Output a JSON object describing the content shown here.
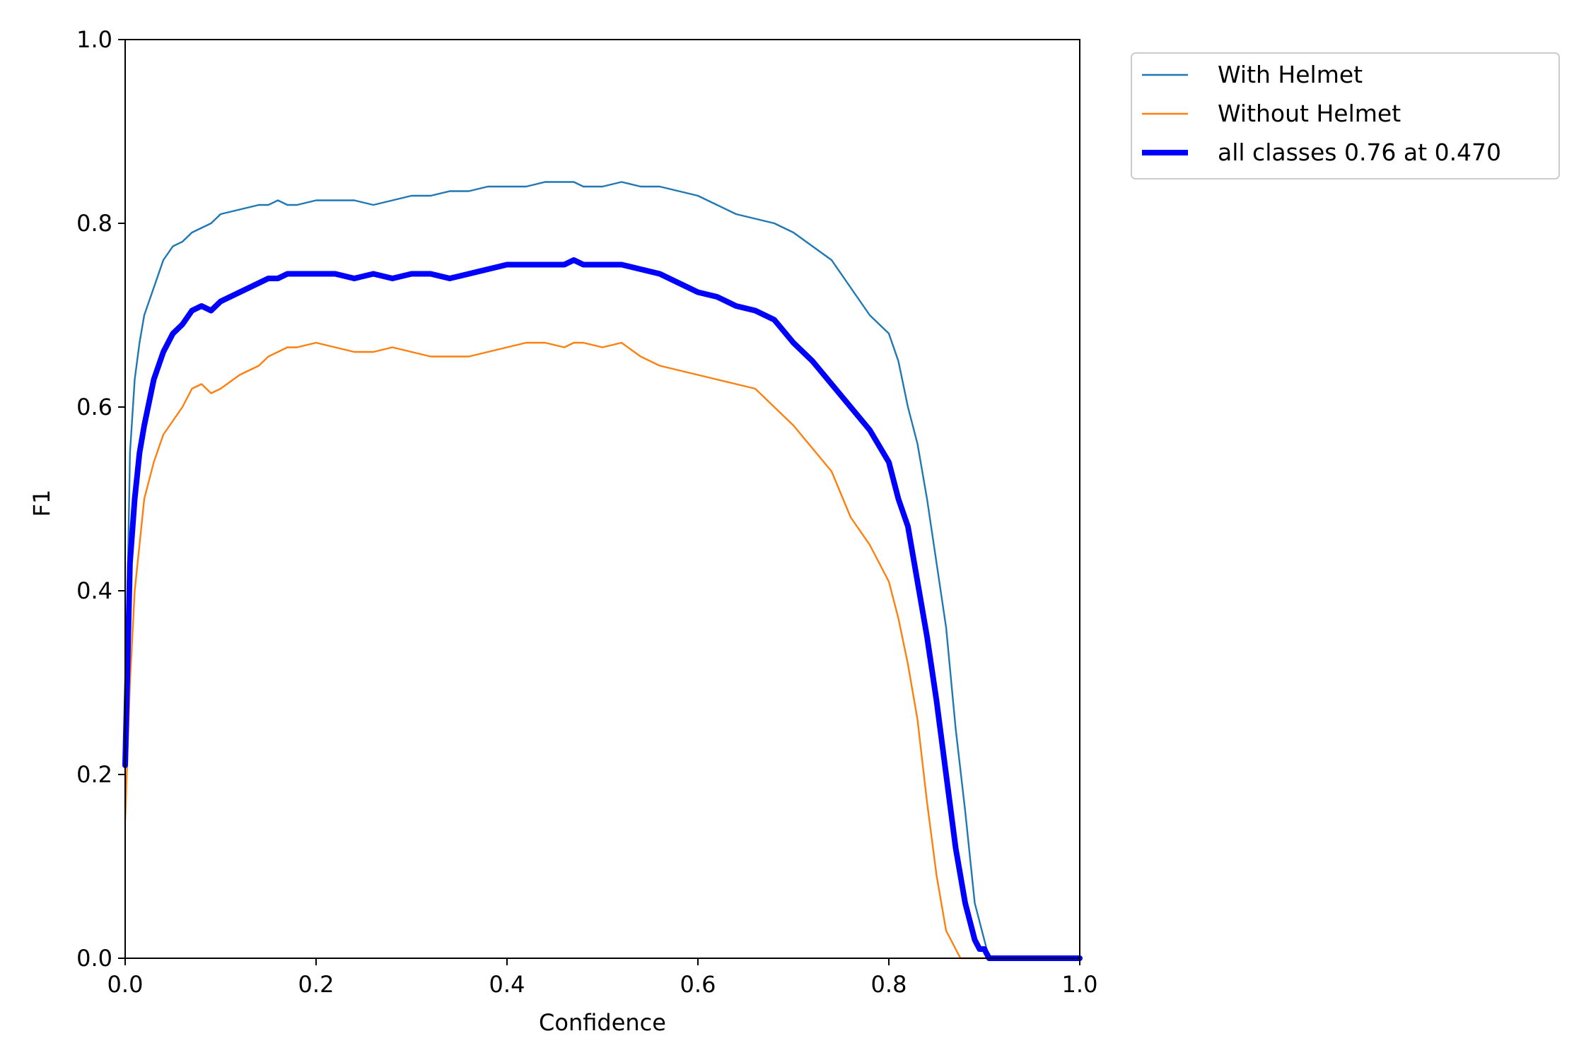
{
  "chart_data": {
    "type": "line",
    "title": "",
    "xlabel": "Confidence",
    "ylabel": "F1",
    "xlim": [
      0,
      1
    ],
    "ylim": [
      0,
      1
    ],
    "xticks": [
      "0.0",
      "0.2",
      "0.4",
      "0.6",
      "0.8",
      "1.0"
    ],
    "yticks": [
      "0.0",
      "0.2",
      "0.4",
      "0.6",
      "0.8",
      "1.0"
    ],
    "grid": false,
    "legend_position": "outside top-right",
    "series": [
      {
        "name": "With Helmet",
        "color": "#1f77b4",
        "width": "thin",
        "x": [
          0,
          0.005,
          0.01,
          0.015,
          0.02,
          0.03,
          0.04,
          0.05,
          0.06,
          0.07,
          0.08,
          0.09,
          0.1,
          0.12,
          0.14,
          0.15,
          0.16,
          0.17,
          0.18,
          0.2,
          0.22,
          0.24,
          0.26,
          0.28,
          0.3,
          0.32,
          0.34,
          0.36,
          0.38,
          0.4,
          0.42,
          0.44,
          0.46,
          0.47,
          0.48,
          0.5,
          0.52,
          0.54,
          0.56,
          0.58,
          0.6,
          0.62,
          0.64,
          0.66,
          0.68,
          0.7,
          0.72,
          0.74,
          0.76,
          0.78,
          0.8,
          0.81,
          0.82,
          0.83,
          0.84,
          0.85,
          0.86,
          0.87,
          0.88,
          0.89,
          0.9,
          0.905,
          0.91,
          0.95,
          1.0
        ],
        "y": [
          0.25,
          0.55,
          0.63,
          0.67,
          0.7,
          0.73,
          0.76,
          0.775,
          0.78,
          0.79,
          0.795,
          0.8,
          0.81,
          0.815,
          0.82,
          0.82,
          0.825,
          0.82,
          0.82,
          0.825,
          0.825,
          0.825,
          0.82,
          0.825,
          0.83,
          0.83,
          0.835,
          0.835,
          0.84,
          0.84,
          0.84,
          0.845,
          0.845,
          0.845,
          0.84,
          0.84,
          0.845,
          0.84,
          0.84,
          0.835,
          0.83,
          0.82,
          0.81,
          0.805,
          0.8,
          0.79,
          0.775,
          0.76,
          0.73,
          0.7,
          0.68,
          0.65,
          0.6,
          0.56,
          0.5,
          0.43,
          0.36,
          0.25,
          0.16,
          0.06,
          0.02,
          0,
          0,
          0,
          0
        ]
      },
      {
        "name": "Without Helmet",
        "color": "#ff7f0e",
        "width": "thin",
        "x": [
          0,
          0.005,
          0.01,
          0.015,
          0.02,
          0.03,
          0.04,
          0.05,
          0.06,
          0.07,
          0.08,
          0.09,
          0.1,
          0.12,
          0.14,
          0.15,
          0.16,
          0.17,
          0.18,
          0.2,
          0.22,
          0.24,
          0.26,
          0.28,
          0.3,
          0.32,
          0.34,
          0.36,
          0.38,
          0.4,
          0.42,
          0.44,
          0.46,
          0.47,
          0.48,
          0.5,
          0.52,
          0.54,
          0.56,
          0.58,
          0.6,
          0.62,
          0.64,
          0.66,
          0.68,
          0.7,
          0.72,
          0.74,
          0.76,
          0.78,
          0.8,
          0.81,
          0.82,
          0.83,
          0.84,
          0.85,
          0.86,
          0.865,
          0.87,
          0.875,
          0.88,
          1.0
        ],
        "y": [
          0.15,
          0.3,
          0.4,
          0.45,
          0.5,
          0.54,
          0.57,
          0.585,
          0.6,
          0.62,
          0.625,
          0.615,
          0.62,
          0.635,
          0.645,
          0.655,
          0.66,
          0.665,
          0.665,
          0.67,
          0.665,
          0.66,
          0.66,
          0.665,
          0.66,
          0.655,
          0.655,
          0.655,
          0.66,
          0.665,
          0.67,
          0.67,
          0.665,
          0.67,
          0.67,
          0.665,
          0.67,
          0.655,
          0.645,
          0.64,
          0.635,
          0.63,
          0.625,
          0.62,
          0.6,
          0.58,
          0.555,
          0.53,
          0.48,
          0.45,
          0.41,
          0.37,
          0.32,
          0.26,
          0.17,
          0.09,
          0.03,
          0.02,
          0.01,
          0,
          0,
          0
        ]
      },
      {
        "name": "all classes 0.76 at 0.470",
        "color": "#0000ff",
        "width": "thick",
        "x": [
          0,
          0.005,
          0.01,
          0.015,
          0.02,
          0.03,
          0.04,
          0.05,
          0.06,
          0.07,
          0.08,
          0.09,
          0.1,
          0.12,
          0.14,
          0.15,
          0.16,
          0.17,
          0.18,
          0.2,
          0.22,
          0.24,
          0.26,
          0.28,
          0.3,
          0.32,
          0.34,
          0.36,
          0.38,
          0.4,
          0.42,
          0.44,
          0.46,
          0.47,
          0.48,
          0.5,
          0.52,
          0.54,
          0.56,
          0.58,
          0.6,
          0.62,
          0.64,
          0.66,
          0.68,
          0.7,
          0.72,
          0.74,
          0.76,
          0.78,
          0.8,
          0.81,
          0.82,
          0.83,
          0.84,
          0.85,
          0.86,
          0.87,
          0.88,
          0.89,
          0.895,
          0.9,
          0.905,
          0.95,
          1.0
        ],
        "y": [
          0.21,
          0.43,
          0.5,
          0.55,
          0.58,
          0.63,
          0.66,
          0.68,
          0.69,
          0.705,
          0.71,
          0.705,
          0.715,
          0.725,
          0.735,
          0.74,
          0.74,
          0.745,
          0.745,
          0.745,
          0.745,
          0.74,
          0.745,
          0.74,
          0.745,
          0.745,
          0.74,
          0.745,
          0.75,
          0.755,
          0.755,
          0.755,
          0.755,
          0.76,
          0.755,
          0.755,
          0.755,
          0.75,
          0.745,
          0.735,
          0.725,
          0.72,
          0.71,
          0.705,
          0.695,
          0.67,
          0.65,
          0.625,
          0.6,
          0.575,
          0.54,
          0.5,
          0.47,
          0.41,
          0.35,
          0.28,
          0.2,
          0.12,
          0.06,
          0.02,
          0.01,
          0.01,
          0,
          0,
          0
        ]
      }
    ]
  }
}
